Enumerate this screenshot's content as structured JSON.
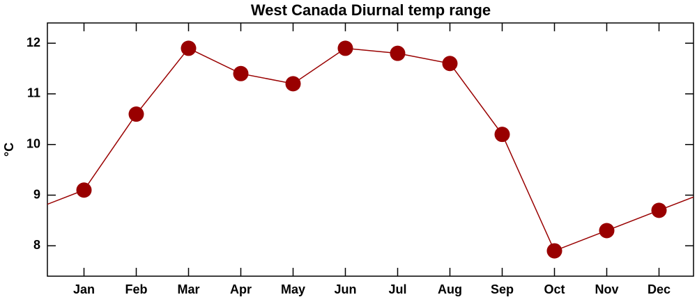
{
  "chart_data": {
    "type": "line",
    "title": "West Canada Diurnal temp range",
    "ylabel": "°C",
    "categories": [
      "Jan",
      "Feb",
      "Mar",
      "Apr",
      "May",
      "Jun",
      "Jul",
      "Aug",
      "Sep",
      "Oct",
      "Nov",
      "Dec"
    ],
    "series": [
      {
        "name": "Diurnal temp range",
        "color": "#990000",
        "values": [
          9.1,
          10.6,
          11.9,
          11.4,
          11.2,
          11.9,
          11.8,
          11.6,
          10.2,
          7.9,
          8.3,
          8.7
        ]
      }
    ],
    "ylim": [
      7.4,
      12.4
    ],
    "yticks": [
      8,
      9,
      10,
      11,
      12
    ],
    "cyclic": true
  }
}
